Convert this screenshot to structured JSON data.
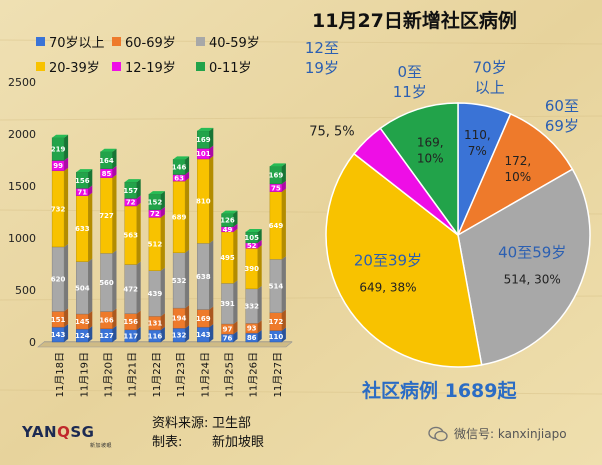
{
  "title": "11月27日新增社区病例",
  "total_label": "社区病例 1689起",
  "source": {
    "source_label": "资料来源:",
    "source_value": "卫生部",
    "maker_label": "制表:",
    "maker_value": "新加坡眼"
  },
  "logo": {
    "text_left": "YAN",
    "text_q": "Q",
    "text_right": "SG",
    "sub": "新加坡眼"
  },
  "wechat": "微信号: kanxinjiapo",
  "colors": {
    "70岁以上": "#3a73d6",
    "60-69岁": "#ee7a2b",
    "40-59岁": "#a8a8a8",
    "20-39岁": "#f8c200",
    "12-19岁": "#ee0ee6",
    "0-11岁": "#22a34a"
  },
  "legend": [
    "70岁以上",
    "60-69岁",
    "40-59岁",
    "20-39岁",
    "12-19岁",
    "0-11岁"
  ],
  "chart_data": [
    {
      "type": "bar",
      "stacked": true,
      "categories": [
        "11月18日",
        "11月19日",
        "11月20日",
        "11月21日",
        "11月22日",
        "11月23日",
        "11月24日",
        "11月25日",
        "11月26日",
        "11月27日"
      ],
      "ylim": [
        0,
        2500
      ],
      "yticks": [
        0,
        500,
        1000,
        1500,
        2000,
        2500
      ],
      "series": [
        {
          "name": "70岁以上",
          "values": [
            143,
            124,
            127,
            117,
            116,
            132,
            143,
            76,
            86,
            110
          ]
        },
        {
          "name": "60-69岁",
          "values": [
            151,
            145,
            166,
            156,
            131,
            194,
            169,
            97,
            93,
            172
          ]
        },
        {
          "name": "40-59岁",
          "values": [
            620,
            504,
            560,
            472,
            439,
            532,
            638,
            391,
            332,
            514
          ]
        },
        {
          "name": "20-39岁",
          "values": [
            732,
            633,
            727,
            563,
            512,
            689,
            810,
            495,
            390,
            649
          ]
        },
        {
          "name": "12-19岁",
          "values": [
            99,
            71,
            85,
            72,
            72,
            63,
            101,
            49,
            52,
            75
          ]
        },
        {
          "name": "0-11岁",
          "values": [
            219,
            156,
            164,
            157,
            152,
            146,
            169,
            126,
            105,
            169
          ]
        }
      ]
    },
    {
      "type": "pie",
      "title": "11月27日新增社区病例",
      "slices": [
        {
          "name": "70岁以上",
          "value": 110,
          "percent": "7%",
          "label_a": "70岁",
          "label_b": "以上"
        },
        {
          "name": "60-69岁",
          "value": 172,
          "percent": "10%",
          "label_a": "60至",
          "label_b": "69岁"
        },
        {
          "name": "40-59岁",
          "value": 514,
          "percent": "30%",
          "label_a": "40至59岁",
          "label_b": ""
        },
        {
          "name": "20-39岁",
          "value": 649,
          "percent": "38%",
          "label_a": "20至39岁",
          "label_b": ""
        },
        {
          "name": "12-19岁",
          "value": 75,
          "percent": "5%",
          "label_a": "12至",
          "label_b": "19岁"
        },
        {
          "name": "0-11岁",
          "value": 169,
          "percent": "10%",
          "label_a": "0至",
          "label_b": "11岁"
        }
      ]
    }
  ]
}
